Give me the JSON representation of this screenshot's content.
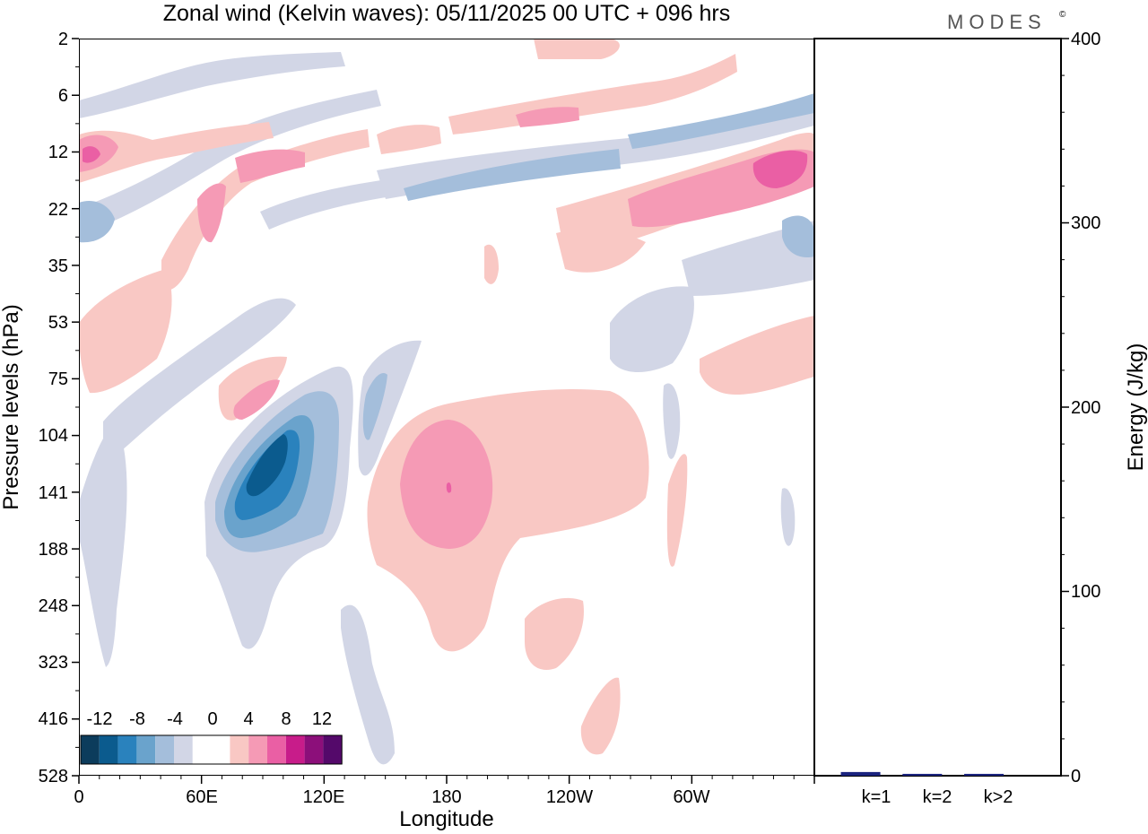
{
  "chart_data": [
    {
      "type": "heatmap",
      "title": "Zonal wind (Kelvin waves):  05/11/2025  00 UTC  + 096 hrs",
      "xlabel": "Longitude",
      "ylabel": "Pressure levels (hPa)",
      "x_ticks": [
        "0",
        "60E",
        "120E",
        "180",
        "120W",
        "60W"
      ],
      "y_ticks": [
        "2",
        "6",
        "12",
        "22",
        "35",
        "53",
        "75",
        "104",
        "141",
        "188",
        "248",
        "323",
        "416",
        "528"
      ],
      "colorbar": {
        "labels": [
          "-12",
          "-8",
          "-4",
          "0",
          "4",
          "8",
          "12"
        ],
        "colors": [
          "#0c3c5c",
          "#0b5b8e",
          "#2a82bd",
          "#6aa3cc",
          "#a4bedb",
          "#d2d6e6",
          "#ffffff",
          "#ffffff",
          "#f9c8c4",
          "#f59ab5",
          "#ea5fa4",
          "#c81c8a",
          "#8c0f7a",
          "#54096a"
        ]
      }
    },
    {
      "type": "bar",
      "ylabel": "Energy (J/kg)",
      "categories": [
        "k=1",
        "k=2",
        "k>2"
      ],
      "values": [
        2,
        1,
        1
      ],
      "ylim": [
        0,
        400
      ],
      "y_ticks": [
        "0",
        "100",
        "200",
        "300",
        "400"
      ],
      "bar_color": "#1a237e"
    }
  ],
  "brand": "MODES",
  "brand_mark": "©"
}
